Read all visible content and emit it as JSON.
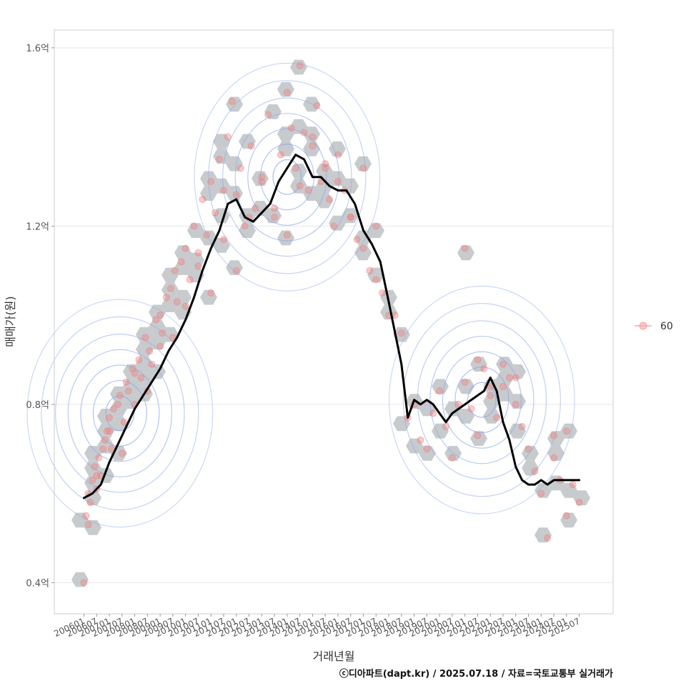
{
  "chart_data": {
    "type": "scatter",
    "xlabel": "거래년월",
    "ylabel": "매매가(원)",
    "y_unit": "억",
    "ylim": [
      0.33,
      1.64
    ],
    "xlim": [
      "2004-11",
      "2026-11"
    ],
    "y_ticks": [
      {
        "value": 0.4,
        "label": "0.4억"
      },
      {
        "value": 0.8,
        "label": "0.8억"
      },
      {
        "value": 1.2,
        "label": "1.2억"
      },
      {
        "value": 1.6,
        "label": "1.6억"
      }
    ],
    "x_ticks": [
      "200601",
      "200607",
      "200701",
      "200707",
      "200801",
      "200807",
      "200901",
      "200907",
      "201001",
      "201007",
      "201101",
      "201107",
      "201201",
      "201207",
      "201301",
      "201307",
      "201401",
      "201407",
      "201501",
      "201507",
      "201601",
      "201607",
      "201701",
      "201707",
      "201801",
      "201807",
      "201901",
      "201907",
      "202001",
      "202007",
      "202101",
      "202107",
      "202201",
      "202207",
      "202301",
      "202307",
      "202401",
      "202407",
      "202501",
      "202507"
    ],
    "legend": {
      "position": "right",
      "entries": [
        {
          "label": "60",
          "color": "#f4a6a6"
        }
      ]
    },
    "grid": true,
    "colors": {
      "points": "#f08080",
      "hex": "#b4b9bd",
      "contour": "#8fa8e8",
      "line": "#000000",
      "panel_border": "#cccccc",
      "grid": "#e6e6e6"
    },
    "series": [
      {
        "kind": "moving_average_line",
        "x": [
          "2006-01",
          "2006-05",
          "2006-09",
          "2007-01",
          "2007-05",
          "2007-09",
          "2008-01",
          "2008-05",
          "2008-09",
          "2009-01",
          "2009-05",
          "2009-09",
          "2010-01",
          "2010-05",
          "2010-09",
          "2011-01",
          "2011-05",
          "2011-09",
          "2012-01",
          "2012-05",
          "2012-09",
          "2013-01",
          "2013-05",
          "2013-09",
          "2014-01",
          "2014-05",
          "2014-09",
          "2015-01",
          "2015-05",
          "2015-09",
          "2016-01",
          "2016-05",
          "2016-09",
          "2017-01",
          "2017-05",
          "2017-09",
          "2018-01",
          "2018-04",
          "2018-07",
          "2018-10",
          "2019-01",
          "2019-04",
          "2019-07",
          "2019-10",
          "2020-01",
          "2020-04",
          "2020-07",
          "2020-10",
          "2021-01",
          "2021-04",
          "2021-07",
          "2021-10",
          "2022-01",
          "2022-04",
          "2022-07",
          "2022-10",
          "2023-01",
          "2023-04",
          "2023-07",
          "2023-10",
          "2024-01",
          "2024-04",
          "2024-07",
          "2024-10",
          "2025-01",
          "2025-04",
          "2025-07"
        ],
        "y": [
          0.59,
          0.6,
          0.62,
          0.67,
          0.71,
          0.75,
          0.79,
          0.82,
          0.85,
          0.88,
          0.92,
          0.95,
          0.99,
          1.04,
          1.1,
          1.15,
          1.19,
          1.25,
          1.26,
          1.22,
          1.21,
          1.23,
          1.25,
          1.3,
          1.33,
          1.36,
          1.35,
          1.31,
          1.31,
          1.29,
          1.28,
          1.28,
          1.25,
          1.19,
          1.16,
          1.12,
          1.03,
          0.96,
          0.89,
          0.77,
          0.81,
          0.8,
          0.81,
          0.8,
          0.78,
          0.76,
          0.78,
          0.79,
          0.8,
          0.81,
          0.82,
          0.83,
          0.86,
          0.83,
          0.76,
          0.72,
          0.66,
          0.63,
          0.62,
          0.62,
          0.63,
          0.62,
          0.63,
          0.63,
          0.63,
          0.63,
          0.63
        ]
      },
      {
        "kind": "points",
        "name": "60",
        "x": [
          "2006-01",
          "2006-02",
          "2006-03",
          "2006-04",
          "2006-05",
          "2006-06",
          "2006-07",
          "2006-08",
          "2006-09",
          "2006-10",
          "2006-11",
          "2006-12",
          "2007-01",
          "2007-02",
          "2007-03",
          "2007-05",
          "2007-06",
          "2007-08",
          "2007-09",
          "2007-10",
          "2007-12",
          "2008-01",
          "2008-03",
          "2008-04",
          "2008-06",
          "2008-08",
          "2008-09",
          "2008-11",
          "2009-01",
          "2009-02",
          "2009-04",
          "2009-06",
          "2009-08",
          "2009-09",
          "2009-11",
          "2010-01",
          "2010-03",
          "2010-05",
          "2010-07",
          "2010-09",
          "2010-11",
          "2011-01",
          "2011-03",
          "2011-05",
          "2011-07",
          "2011-09",
          "2011-11",
          "2012-01",
          "2012-03",
          "2012-05",
          "2012-08",
          "2012-10",
          "2013-01",
          "2013-04",
          "2013-07",
          "2013-10",
          "2014-01",
          "2014-03",
          "2014-05",
          "2014-07",
          "2014-09",
          "2014-11",
          "2015-01",
          "2015-03",
          "2015-05",
          "2015-07",
          "2015-09",
          "2015-11",
          "2016-01",
          "2016-04",
          "2016-07",
          "2016-10",
          "2017-01",
          "2017-04",
          "2017-07",
          "2017-10",
          "2018-01",
          "2018-04",
          "2018-07",
          "2018-10",
          "2019-01",
          "2019-04",
          "2019-07",
          "2019-10",
          "2020-01",
          "2020-04",
          "2020-07",
          "2020-10",
          "2021-01",
          "2021-04",
          "2021-07",
          "2021-10",
          "2022-01",
          "2022-04",
          "2022-07",
          "2022-10",
          "2023-01",
          "2023-04",
          "2023-07",
          "2023-10",
          "2024-01",
          "2024-04",
          "2024-07",
          "2024-10",
          "2025-01",
          "2025-04",
          "2025-07",
          "2006-03",
          "2006-07",
          "2007-01",
          "2007-07",
          "2008-01",
          "2008-07",
          "2009-01",
          "2009-07",
          "2010-01",
          "2010-07",
          "2011-01",
          "2011-07",
          "2012-01",
          "2012-07",
          "2013-01",
          "2013-07",
          "2014-01",
          "2014-07",
          "2015-01",
          "2015-07",
          "2016-01",
          "2016-07",
          "2017-01",
          "2017-07",
          "2021-01",
          "2021-07",
          "2022-01",
          "2022-07",
          "2023-01",
          "2024-07",
          "2025-01"
        ],
        "y": [
          0.4,
          0.55,
          0.6,
          0.58,
          0.63,
          0.66,
          0.61,
          0.68,
          0.64,
          0.7,
          0.72,
          0.74,
          0.77,
          0.7,
          0.79,
          0.8,
          0.82,
          0.76,
          0.85,
          0.83,
          0.88,
          0.87,
          0.9,
          0.86,
          0.95,
          0.92,
          0.89,
          0.99,
          1.0,
          0.96,
          1.04,
          1.06,
          1.1,
          1.03,
          1.12,
          1.15,
          1.08,
          1.2,
          1.14,
          1.26,
          1.18,
          1.3,
          1.23,
          1.35,
          1.28,
          1.4,
          1.48,
          1.27,
          1.33,
          1.2,
          1.38,
          1.24,
          1.31,
          1.45,
          1.22,
          1.36,
          1.5,
          1.42,
          1.33,
          1.56,
          1.41,
          1.28,
          1.38,
          1.47,
          1.3,
          1.33,
          1.26,
          1.2,
          1.36,
          1.28,
          1.22,
          1.17,
          1.15,
          1.1,
          1.08,
          1.05,
          1.0,
          1.0,
          0.96,
          0.77,
          0.8,
          0.72,
          0.7,
          0.78,
          0.83,
          0.75,
          0.68,
          0.8,
          0.85,
          0.79,
          0.73,
          0.88,
          0.82,
          0.77,
          0.84,
          0.86,
          0.8,
          0.75,
          0.7,
          0.65,
          0.6,
          0.5,
          0.68,
          0.63,
          0.55,
          0.62,
          0.58,
          0.53,
          0.64,
          0.74,
          0.69,
          0.8,
          0.83,
          0.93,
          0.95,
          1.02,
          1.11,
          1.05,
          1.17,
          1.1,
          1.22,
          1.3,
          1.24,
          1.18,
          1.29,
          1.4,
          1.34,
          1.3,
          1.22,
          1.33,
          1.2,
          1.15,
          0.9,
          0.84,
          0.89,
          0.86,
          0.73,
          0.74
        ]
      }
    ],
    "density_centers": [
      {
        "x": "2007-06",
        "y": 0.78
      },
      {
        "x": "2014-01",
        "y": 1.31
      },
      {
        "x": "2021-09",
        "y": 0.81
      }
    ],
    "caption": "ⓒ디아파트(dapt.kr) / 2025.07.18 / 자료=국토교통부 실거래가"
  }
}
